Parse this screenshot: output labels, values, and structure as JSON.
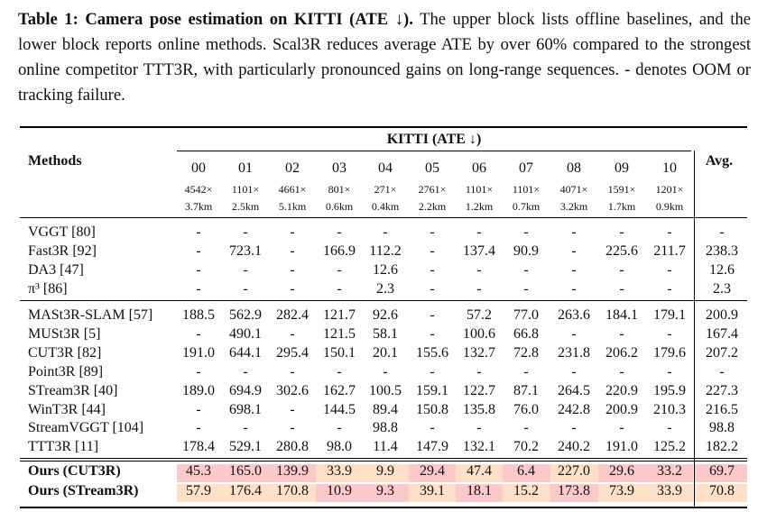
{
  "caption": {
    "label": "Table 1: Camera pose estimation on KITTI (ATE ↓).",
    "text": " The upper block lists offline baselines, and the lower block reports online methods. Scal3R reduces average ATE by over 60% compared to the strongest online competitor TTT3R, with particularly pronounced gains on long-range sequences. - denotes OOM or tracking failure."
  },
  "header": {
    "methods": "Methods",
    "group": "KITTI (ATE ↓)",
    "avg": "Avg.",
    "sequences": [
      "00",
      "01",
      "02",
      "03",
      "04",
      "05",
      "06",
      "07",
      "08",
      "09",
      "10"
    ],
    "frames": [
      "4542×",
      "1101×",
      "4661×",
      "801×",
      "271×",
      "2761×",
      "1101×",
      "1101×",
      "4071×",
      "1591×",
      "1201×"
    ],
    "lengths": [
      "3.7km",
      "2.5km",
      "5.1km",
      "0.6km",
      "0.4km",
      "2.2km",
      "1.2km",
      "0.7km",
      "3.2km",
      "1.7km",
      "0.9km"
    ]
  },
  "offline": [
    {
      "name": "VGGT [80]",
      "values": [
        "-",
        "-",
        "-",
        "-",
        "-",
        "-",
        "-",
        "-",
        "-",
        "-",
        "-"
      ],
      "avg": "-"
    },
    {
      "name": "Fast3R [92]",
      "values": [
        "-",
        "723.1",
        "-",
        "166.9",
        "112.2",
        "-",
        "137.4",
        "90.9",
        "-",
        "225.6",
        "211.7"
      ],
      "avg": "238.3"
    },
    {
      "name": "DA3 [47]",
      "values": [
        "-",
        "-",
        "-",
        "-",
        "12.6",
        "-",
        "-",
        "-",
        "-",
        "-",
        "-"
      ],
      "avg": "12.6"
    },
    {
      "name": "π³ [86]",
      "values": [
        "-",
        "-",
        "-",
        "-",
        "2.3",
        "-",
        "-",
        "-",
        "-",
        "-",
        "-"
      ],
      "avg": "2.3"
    }
  ],
  "online": [
    {
      "name": "MASt3R-SLAM [57]",
      "values": [
        "188.5",
        "562.9",
        "282.4",
        "121.7",
        "92.6",
        "-",
        "57.2",
        "77.0",
        "263.6",
        "184.1",
        "179.1"
      ],
      "avg": "200.9"
    },
    {
      "name": "MUSt3R [5]",
      "values": [
        "-",
        "490.1",
        "-",
        "121.5",
        "58.1",
        "-",
        "100.6",
        "66.8",
        "-",
        "-",
        "-"
      ],
      "avg": "167.4"
    },
    {
      "name": "CUT3R [82]",
      "values": [
        "191.0",
        "644.1",
        "295.4",
        "150.1",
        "20.1",
        "155.6",
        "132.7",
        "72.8",
        "231.8",
        "206.2",
        "179.6"
      ],
      "avg": "207.2"
    },
    {
      "name": "Point3R [89]",
      "values": [
        "-",
        "-",
        "-",
        "-",
        "-",
        "-",
        "-",
        "-",
        "-",
        "-",
        "-"
      ],
      "avg": "-"
    },
    {
      "name": "STream3R [40]",
      "values": [
        "189.0",
        "694.9",
        "302.6",
        "162.7",
        "100.5",
        "159.1",
        "122.7",
        "87.1",
        "264.5",
        "220.9",
        "195.9"
      ],
      "avg": "227.3"
    },
    {
      "name": "WinT3R [44]",
      "values": [
        "-",
        "698.1",
        "-",
        "144.5",
        "89.4",
        "150.8",
        "135.8",
        "76.0",
        "242.8",
        "200.9",
        "210.3"
      ],
      "avg": "216.5"
    },
    {
      "name": "StreamVGGT [104]",
      "values": [
        "-",
        "-",
        "-",
        "-",
        "98.8",
        "-",
        "-",
        "-",
        "-",
        "-",
        "-"
      ],
      "avg": "98.8"
    },
    {
      "name": "TTT3R [11]",
      "values": [
        "178.4",
        "529.1",
        "280.8",
        "98.0",
        "11.4",
        "147.9",
        "132.1",
        "70.2",
        "240.2",
        "191.0",
        "125.2"
      ],
      "avg": "182.2"
    }
  ],
  "ours": [
    {
      "name": "Ours (CUT3R)",
      "values": [
        "45.3",
        "165.0",
        "139.9",
        "33.9",
        "9.9",
        "29.4",
        "47.4",
        "6.4",
        "227.0",
        "29.6",
        "33.2"
      ],
      "avg": "69.7",
      "colors": [
        "#fbc9c9",
        "#fbc9c9",
        "#fbc9c9",
        "#fde0c6",
        "#fde0c6",
        "#fbc9c9",
        "#fde0c6",
        "#fbc9c9",
        "#fde0c6",
        "#fbc9c9",
        "#fbc9c9"
      ],
      "avg_color": "#fbc9c9"
    },
    {
      "name": "Ours (STream3R)",
      "values": [
        "57.9",
        "176.4",
        "170.8",
        "10.9",
        "9.3",
        "39.1",
        "18.1",
        "15.2",
        "173.8",
        "73.9",
        "33.9"
      ],
      "avg": "70.8",
      "colors": [
        "#fde0c6",
        "#fde0c6",
        "#fde0c6",
        "#fbc9c9",
        "#fbc9c9",
        "#fde0c6",
        "#fbc9c9",
        "#fde0c6",
        "#fbc9c9",
        "#fde0c6",
        "#fde0c6"
      ],
      "avg_color": "#fde0c6"
    }
  ],
  "colors": {
    "best": "#fbc9c9",
    "second": "#fde0c6"
  }
}
